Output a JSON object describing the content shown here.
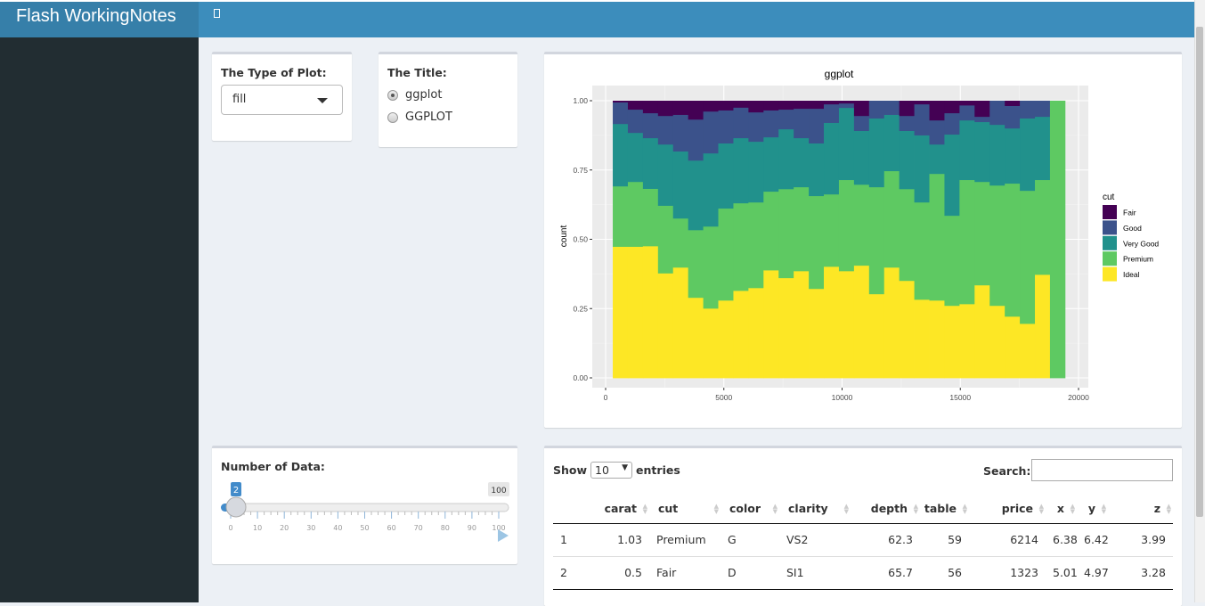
{
  "header": {
    "title": "Flash WorkingNotes",
    "toggle_icon": "sidebar-toggle-icon"
  },
  "plot_type": {
    "label": "The Type of Plot:",
    "selected": "fill"
  },
  "title_input": {
    "label": "The Title:",
    "options": [
      "ggplot",
      "GGPLOT"
    ],
    "selected": "ggplot"
  },
  "slider": {
    "label": "Number of Data:",
    "value": 2,
    "min": 0,
    "max": 100,
    "value_label": "2",
    "max_label": "100",
    "ticks": [
      "0",
      "10",
      "20",
      "30",
      "40",
      "50",
      "60",
      "70",
      "80",
      "90",
      "100"
    ]
  },
  "table": {
    "show_label": "Show",
    "length": "10",
    "entries_label": "entries",
    "search_label": "Search:",
    "search_value": "",
    "columns": [
      "",
      "carat",
      "cut",
      "color",
      "clarity",
      "depth",
      "table",
      "price",
      "x",
      "y",
      "z"
    ],
    "rows": [
      [
        "1",
        "1.03",
        "Premium",
        "G",
        "VS2",
        "62.3",
        "59",
        "6214",
        "6.38",
        "6.42",
        "3.99"
      ],
      [
        "2",
        "0.5",
        "Fair",
        "D",
        "SI1",
        "65.7",
        "56",
        "1323",
        "5.01",
        "4.97",
        "3.28"
      ]
    ]
  },
  "chart_data": {
    "type": "bar",
    "position": "fill",
    "title": "ggplot",
    "xlabel": "",
    "ylabel": "count",
    "xlim": [
      0,
      20000
    ],
    "ylim": [
      0,
      1
    ],
    "grid": true,
    "legend_position": "right",
    "legend_title": "cut",
    "xticks": [
      "0",
      "5000",
      "10000",
      "15000",
      "20000"
    ],
    "yticks": [
      "0.00",
      "0.25",
      "0.50",
      "0.75",
      "1.00"
    ],
    "binwidth": 637.6,
    "x": [
      621,
      1259,
      1896,
      2534,
      3171,
      3809,
      4447,
      5084,
      5722,
      6359,
      6997,
      7635,
      8272,
      8910,
      9547,
      10185,
      10823,
      11460,
      12098,
      12735,
      13373,
      14011,
      14648,
      15286,
      15923,
      16561,
      17199,
      17836,
      18474,
      19111
    ],
    "series": [
      {
        "name": "Ideal",
        "color": "#fde725",
        "values": [
          0.474,
          0.474,
          0.476,
          0.378,
          0.399,
          0.29,
          0.251,
          0.28,
          0.315,
          0.325,
          0.389,
          0.361,
          0.386,
          0.322,
          0.402,
          0.386,
          0.406,
          0.303,
          0.399,
          0.351,
          0.283,
          0.28,
          0.261,
          0.267,
          0.335,
          0.261,
          0.222,
          0.196,
          0.373,
          0
        ]
      },
      {
        "name": "Premium",
        "color": "#5ec962",
        "values": [
          0.218,
          0.234,
          0.207,
          0.244,
          0.177,
          0.244,
          0.296,
          0.332,
          0.316,
          0.309,
          0.284,
          0.321,
          0.303,
          0.335,
          0.261,
          0.329,
          0.292,
          0.386,
          0.348,
          0.331,
          0.351,
          0.457,
          0.325,
          0.448,
          0.373,
          0.434,
          0.48,
          0.48,
          0.342,
          1
        ]
      },
      {
        "name": "Very Good",
        "color": "#21918c",
        "values": [
          0.225,
          0.177,
          0.183,
          0.221,
          0.242,
          0.251,
          0.264,
          0.235,
          0.235,
          0.219,
          0.196,
          0.216,
          0.177,
          0.19,
          0.258,
          0.26,
          0.194,
          0.248,
          0.203,
          0.21,
          0.242,
          0.106,
          0.293,
          0.215,
          0.216,
          0.219,
          0.199,
          0.261,
          0.228,
          0
        ]
      },
      {
        "name": "Good",
        "color": "#3b528b",
        "values": [
          0.078,
          0.084,
          0.09,
          0.103,
          0.132,
          0.148,
          0.151,
          0.119,
          0.11,
          0.106,
          0.097,
          0.071,
          0.106,
          0.125,
          0.067,
          0.016,
          0.054,
          0.063,
          0.05,
          0.054,
          0.112,
          0.087,
          0.077,
          0.054,
          0.019,
          0.086,
          0.081,
          0.063,
          0.057,
          0
        ]
      },
      {
        "name": "Fair",
        "color": "#440154",
        "values": [
          0.005,
          0.031,
          0.044,
          0.054,
          0.05,
          0.067,
          0.038,
          0.034,
          0.024,
          0.041,
          0.034,
          0.031,
          0.028,
          0.028,
          0.012,
          0.009,
          0.054,
          0,
          0,
          0.054,
          0.012,
          0.07,
          0.044,
          0.016,
          0.057,
          0,
          0.018,
          0,
          0,
          0
        ]
      }
    ]
  }
}
